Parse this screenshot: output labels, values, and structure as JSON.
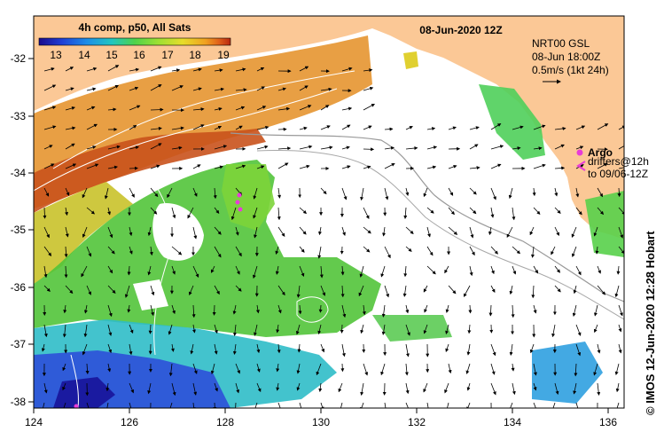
{
  "colorbar": {
    "title": "4h comp, p50, All Sats",
    "labels": [
      "13",
      "14",
      "15",
      "16",
      "17",
      "18",
      "19"
    ],
    "colors": [
      "#1a0a8c",
      "#1f3fd6",
      "#1e8ee8",
      "#21c6c0",
      "#4fd34a",
      "#9be033",
      "#e7dd2a",
      "#f0a020",
      "#e0601a",
      "#b82810"
    ]
  },
  "title_date": "08-Jun-2020 12Z",
  "info": {
    "line1": "NRT00 GSL",
    "line2": "08-Jun 18:00Z",
    "line3": "0.5m/s (1kt 24h)"
  },
  "legend": {
    "argo_label": "Argo",
    "argo_color": "#e83cd8",
    "drifters_line1": "drifters@12h",
    "drifters_line2": "to 09/06-12Z"
  },
  "axes": {
    "x_ticks": [
      "124",
      "126",
      "128",
      "130",
      "132",
      "134",
      "136"
    ],
    "y_ticks": [
      "-32",
      "-33",
      "-34",
      "-35",
      "-36",
      "-37",
      "-38"
    ]
  },
  "credit": "© IMOS 12-Jun-2020 12:28 Hobart",
  "colors": {
    "land": "#fbc896",
    "sea_bg": "#ffffff",
    "frame": "#000000"
  }
}
